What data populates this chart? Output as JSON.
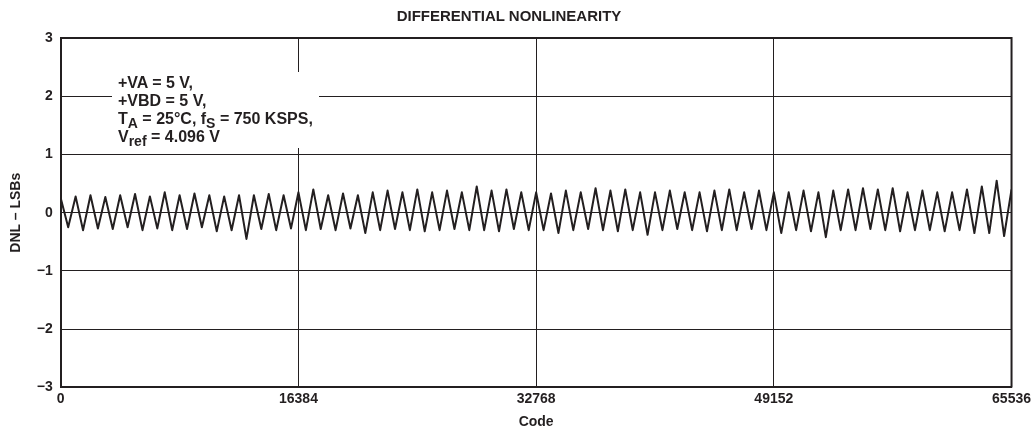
{
  "chart_data": {
    "type": "line",
    "title": "DIFFERENTIAL NONLINEARITY",
    "xlabel": "Code",
    "ylabel": "DNL – LSBs",
    "annotations": [
      "+VA = 5 V,",
      "+VBD = 5 V,",
      "T$_{A}$ = 25°C, f$_{S}$ = 750 KSPS,",
      "V$_{ref}$ = 4.096 V"
    ],
    "x": [
      0,
      512,
      1024,
      1536,
      2048,
      2560,
      3072,
      3584,
      4096,
      4608,
      5120,
      5632,
      6144,
      6656,
      7168,
      7680,
      8192,
      8704,
      9216,
      9728,
      10240,
      10752,
      11264,
      11776,
      12288,
      12800,
      13312,
      13824,
      14336,
      14848,
      15360,
      15872,
      16384,
      16896,
      17408,
      17920,
      18432,
      18944,
      19456,
      19968,
      20480,
      20992,
      21504,
      22016,
      22528,
      23040,
      23552,
      24064,
      24576,
      25088,
      25600,
      26112,
      26624,
      27136,
      27648,
      28160,
      28672,
      29184,
      29696,
      30208,
      30720,
      31232,
      31744,
      32256,
      32768,
      33280,
      33792,
      34304,
      34816,
      35328,
      35840,
      36352,
      36864,
      37376,
      37888,
      38400,
      38912,
      39424,
      39936,
      40448,
      40960,
      41472,
      41984,
      42496,
      43008,
      43520,
      44032,
      44544,
      45056,
      45568,
      46080,
      46592,
      47104,
      47616,
      48128,
      48640,
      49152,
      49664,
      50176,
      50688,
      51200,
      51712,
      52224,
      52736,
      53248,
      53760,
      54272,
      54784,
      55296,
      55808,
      56320,
      56832,
      57344,
      57856,
      58368,
      58880,
      59392,
      59904,
      60416,
      60928,
      61440,
      61952,
      62464,
      62976,
      63488,
      64000,
      64512,
      65024,
      65536
    ],
    "series": [
      {
        "color": "#231f20",
        "values": [
          0.25,
          -0.25,
          0.28,
          -0.3,
          0.3,
          -0.27,
          0.27,
          -0.28,
          0.3,
          -0.25,
          0.32,
          -0.3,
          0.28,
          -0.27,
          0.35,
          -0.3,
          0.3,
          -0.28,
          0.33,
          -0.25,
          0.3,
          -0.32,
          0.28,
          -0.3,
          0.3,
          -0.45,
          0.3,
          -0.28,
          0.32,
          -0.3,
          0.3,
          -0.27,
          0.35,
          -0.3,
          0.4,
          -0.28,
          0.3,
          -0.3,
          0.33,
          -0.27,
          0.3,
          -0.35,
          0.35,
          -0.3,
          0.38,
          -0.28,
          0.35,
          -0.3,
          0.4,
          -0.32,
          0.35,
          -0.3,
          0.38,
          -0.28,
          0.35,
          -0.3,
          0.45,
          -0.3,
          0.38,
          -0.32,
          0.4,
          -0.28,
          0.35,
          -0.3,
          0.35,
          -0.3,
          0.33,
          -0.35,
          0.38,
          -0.3,
          0.35,
          -0.28,
          0.42,
          -0.3,
          0.38,
          -0.32,
          0.4,
          -0.3,
          0.35,
          -0.38,
          0.35,
          -0.3,
          0.38,
          -0.28,
          0.35,
          -0.3,
          0.35,
          -0.32,
          0.38,
          -0.3,
          0.4,
          -0.3,
          0.35,
          -0.28,
          0.38,
          -0.3,
          0.35,
          -0.35,
          0.35,
          -0.3,
          0.38,
          -0.32,
          0.35,
          -0.42,
          0.38,
          -0.3,
          0.4,
          -0.3,
          0.42,
          -0.28,
          0.4,
          -0.3,
          0.42,
          -0.32,
          0.35,
          -0.3,
          0.38,
          -0.3,
          0.35,
          -0.32,
          0.35,
          -0.3,
          0.4,
          -0.35,
          0.45,
          -0.35,
          0.55,
          -0.4,
          0.4
        ]
      }
    ],
    "xlim": [
      0,
      65536
    ],
    "xticks": [
      0,
      16384,
      32768,
      49152,
      65536
    ],
    "ylim": [
      -3,
      3
    ],
    "yticks": [
      {
        "value": -3,
        "label": "−3"
      },
      {
        "value": -2,
        "label": "−2"
      },
      {
        "value": -1,
        "label": "−1"
      },
      0,
      1,
      2,
      3
    ],
    "grid": true,
    "legend": false,
    "marker": "none",
    "line_style": "solid"
  }
}
